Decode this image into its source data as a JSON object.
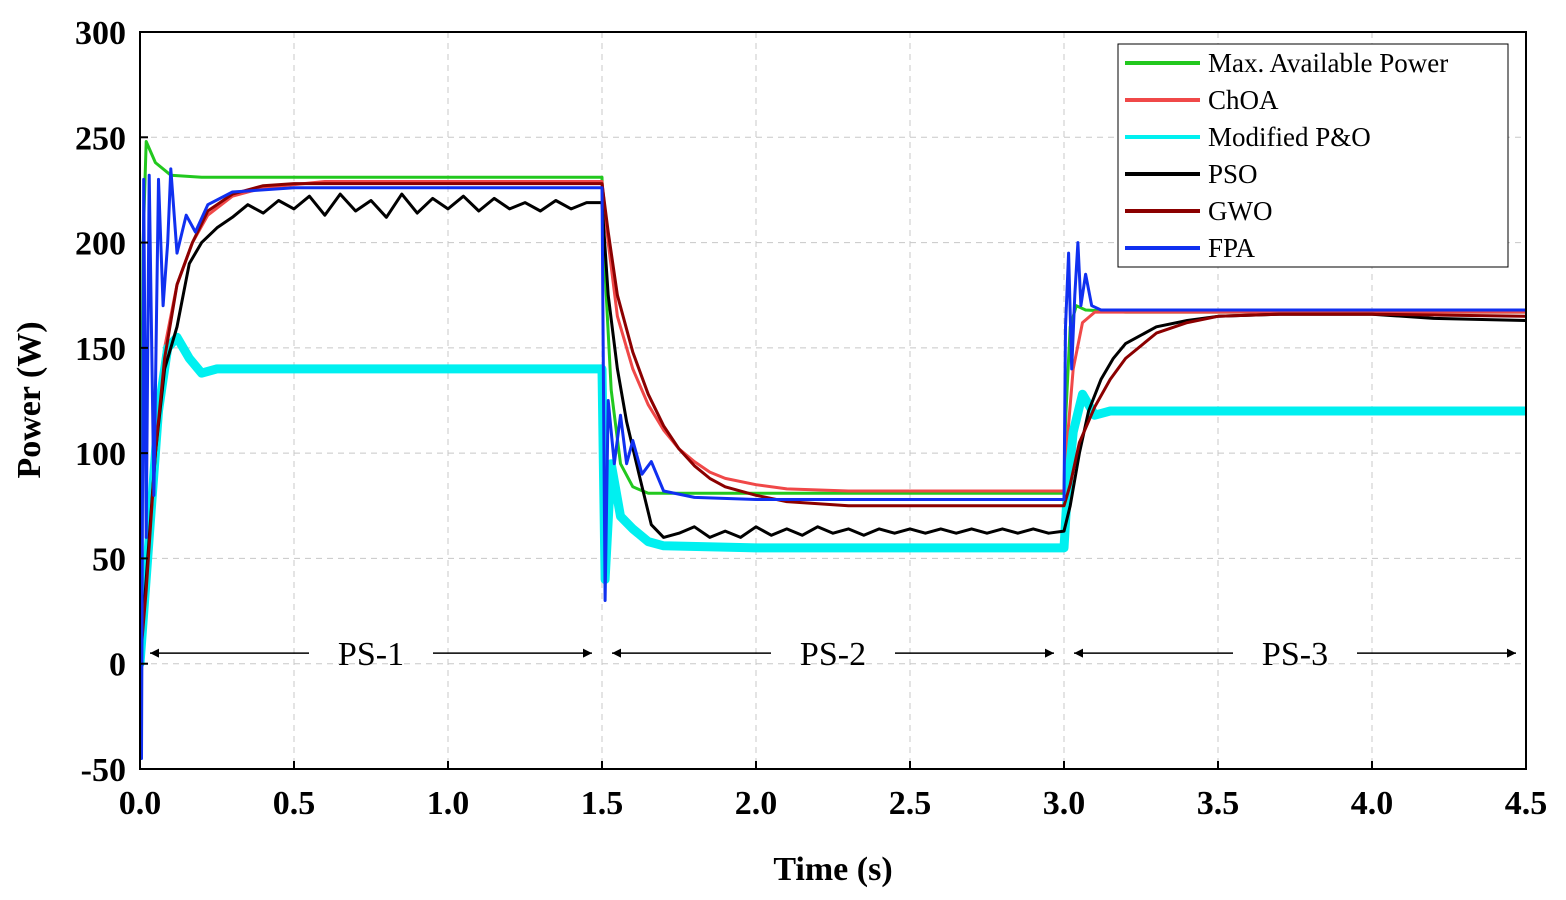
{
  "chart_data": {
    "type": "line",
    "xlabel": "Time (s)",
    "ylabel": "Power (W)",
    "xlim": [
      0,
      4.5
    ],
    "ylim": [
      -50,
      300
    ],
    "grid": true,
    "legend_position": "top-right",
    "x_ticks": [
      "0.0",
      "0.5",
      "1.0",
      "1.5",
      "2.0",
      "2.5",
      "3.0",
      "3.5",
      "4.0",
      "4.5"
    ],
    "y_ticks": [
      "-50",
      "0",
      "50",
      "100",
      "150",
      "200",
      "250",
      "300"
    ],
    "x_tick_values": [
      0,
      0.5,
      1.0,
      1.5,
      2.0,
      2.5,
      3.0,
      3.5,
      4.0,
      4.5
    ],
    "y_tick_values": [
      -50,
      0,
      50,
      100,
      150,
      200,
      250,
      300
    ],
    "series": [
      {
        "name": "Max. Available Power",
        "color": "#22c81e",
        "points": [
          [
            0,
            0
          ],
          [
            0.01,
            200
          ],
          [
            0.02,
            248
          ],
          [
            0.05,
            238
          ],
          [
            0.1,
            232
          ],
          [
            0.2,
            231
          ],
          [
            0.5,
            231
          ],
          [
            1.0,
            231
          ],
          [
            1.5,
            231
          ],
          [
            1.505,
            200
          ],
          [
            1.53,
            130
          ],
          [
            1.56,
            95
          ],
          [
            1.6,
            84
          ],
          [
            1.65,
            81
          ],
          [
            1.8,
            81
          ],
          [
            2.0,
            81
          ],
          [
            2.5,
            81
          ],
          [
            3.0,
            81
          ],
          [
            3.005,
            115
          ],
          [
            3.02,
            160
          ],
          [
            3.04,
            170
          ],
          [
            3.07,
            168
          ],
          [
            3.2,
            167
          ],
          [
            4.0,
            167
          ],
          [
            4.5,
            167
          ]
        ]
      },
      {
        "name": "ChOA",
        "color": "#f04848",
        "points": [
          [
            0,
            0
          ],
          [
            0.02,
            40
          ],
          [
            0.05,
            110
          ],
          [
            0.08,
            150
          ],
          [
            0.12,
            180
          ],
          [
            0.17,
            200
          ],
          [
            0.22,
            213
          ],
          [
            0.3,
            222
          ],
          [
            0.4,
            226
          ],
          [
            0.6,
            229
          ],
          [
            1.0,
            229
          ],
          [
            1.5,
            229
          ],
          [
            1.52,
            200
          ],
          [
            1.55,
            165
          ],
          [
            1.6,
            140
          ],
          [
            1.65,
            123
          ],
          [
            1.7,
            111
          ],
          [
            1.75,
            102
          ],
          [
            1.8,
            96
          ],
          [
            1.85,
            91
          ],
          [
            1.9,
            88
          ],
          [
            2.0,
            85
          ],
          [
            2.1,
            83
          ],
          [
            2.3,
            82
          ],
          [
            3.0,
            82
          ],
          [
            3.01,
            105
          ],
          [
            3.03,
            140
          ],
          [
            3.06,
            162
          ],
          [
            3.1,
            167
          ],
          [
            3.2,
            167
          ],
          [
            4.0,
            167
          ],
          [
            4.5,
            167
          ]
        ]
      },
      {
        "name": "Modified P&O",
        "color": "#00f0f0",
        "points": [
          [
            0,
            0
          ],
          [
            0.03,
            60
          ],
          [
            0.06,
            120
          ],
          [
            0.09,
            150
          ],
          [
            0.12,
            155
          ],
          [
            0.16,
            145
          ],
          [
            0.2,
            138
          ],
          [
            0.25,
            140
          ],
          [
            0.4,
            140
          ],
          [
            1.0,
            140
          ],
          [
            1.5,
            140
          ],
          [
            1.505,
            90
          ],
          [
            1.51,
            40
          ],
          [
            1.53,
            95
          ],
          [
            1.56,
            70
          ],
          [
            1.6,
            64
          ],
          [
            1.65,
            58
          ],
          [
            1.7,
            56
          ],
          [
            2.0,
            55
          ],
          [
            3.0,
            55
          ],
          [
            3.01,
            80
          ],
          [
            3.03,
            110
          ],
          [
            3.06,
            128
          ],
          [
            3.1,
            118
          ],
          [
            3.15,
            120
          ],
          [
            4.0,
            120
          ],
          [
            4.5,
            120
          ]
        ]
      },
      {
        "name": "PSO",
        "color": "#000000",
        "points": [
          [
            0,
            0
          ],
          [
            0.02,
            40
          ],
          [
            0.05,
            100
          ],
          [
            0.08,
            140
          ],
          [
            0.12,
            160
          ],
          [
            0.16,
            190
          ],
          [
            0.2,
            200
          ],
          [
            0.25,
            207
          ],
          [
            0.3,
            212
          ],
          [
            0.35,
            218
          ],
          [
            0.4,
            214
          ],
          [
            0.45,
            220
          ],
          [
            0.5,
            216
          ],
          [
            0.55,
            222
          ],
          [
            0.6,
            213
          ],
          [
            0.65,
            223
          ],
          [
            0.7,
            215
          ],
          [
            0.75,
            220
          ],
          [
            0.8,
            212
          ],
          [
            0.85,
            223
          ],
          [
            0.9,
            214
          ],
          [
            0.95,
            221
          ],
          [
            1.0,
            216
          ],
          [
            1.05,
            222
          ],
          [
            1.1,
            215
          ],
          [
            1.15,
            221
          ],
          [
            1.2,
            216
          ],
          [
            1.25,
            219
          ],
          [
            1.3,
            215
          ],
          [
            1.35,
            220
          ],
          [
            1.4,
            216
          ],
          [
            1.45,
            219
          ],
          [
            1.5,
            219
          ],
          [
            1.52,
            175
          ],
          [
            1.55,
            140
          ],
          [
            1.58,
            115
          ],
          [
            1.62,
            90
          ],
          [
            1.66,
            66
          ],
          [
            1.7,
            60
          ],
          [
            1.75,
            62
          ],
          [
            1.8,
            65
          ],
          [
            1.85,
            60
          ],
          [
            1.9,
            63
          ],
          [
            1.95,
            60
          ],
          [
            2.0,
            65
          ],
          [
            2.05,
            61
          ],
          [
            2.1,
            64
          ],
          [
            2.15,
            61
          ],
          [
            2.2,
            65
          ],
          [
            2.25,
            62
          ],
          [
            2.3,
            64
          ],
          [
            2.35,
            61
          ],
          [
            2.4,
            64
          ],
          [
            2.45,
            62
          ],
          [
            2.5,
            64
          ],
          [
            2.55,
            62
          ],
          [
            2.6,
            64
          ],
          [
            2.65,
            62
          ],
          [
            2.7,
            64
          ],
          [
            2.75,
            62
          ],
          [
            2.8,
            64
          ],
          [
            2.85,
            62
          ],
          [
            2.9,
            64
          ],
          [
            2.95,
            62
          ],
          [
            3.0,
            63
          ],
          [
            3.02,
            75
          ],
          [
            3.05,
            100
          ],
          [
            3.08,
            120
          ],
          [
            3.12,
            135
          ],
          [
            3.16,
            145
          ],
          [
            3.2,
            152
          ],
          [
            3.3,
            160
          ],
          [
            3.4,
            163
          ],
          [
            3.5,
            165
          ],
          [
            3.7,
            166
          ],
          [
            4.0,
            166
          ],
          [
            4.2,
            164
          ],
          [
            4.5,
            163
          ]
        ]
      },
      {
        "name": "GWO",
        "color": "#8b0000",
        "points": [
          [
            0,
            0
          ],
          [
            0.02,
            35
          ],
          [
            0.05,
            100
          ],
          [
            0.08,
            145
          ],
          [
            0.12,
            180
          ],
          [
            0.17,
            200
          ],
          [
            0.22,
            215
          ],
          [
            0.3,
            223
          ],
          [
            0.4,
            227
          ],
          [
            0.5,
            228
          ],
          [
            1.0,
            228
          ],
          [
            1.5,
            228
          ],
          [
            1.52,
            205
          ],
          [
            1.55,
            175
          ],
          [
            1.6,
            148
          ],
          [
            1.65,
            128
          ],
          [
            1.7,
            113
          ],
          [
            1.75,
            102
          ],
          [
            1.8,
            94
          ],
          [
            1.85,
            88
          ],
          [
            1.9,
            84
          ],
          [
            2.0,
            80
          ],
          [
            2.1,
            77
          ],
          [
            2.3,
            75
          ],
          [
            3.0,
            75
          ],
          [
            3.02,
            85
          ],
          [
            3.05,
            105
          ],
          [
            3.1,
            122
          ],
          [
            3.15,
            135
          ],
          [
            3.2,
            145
          ],
          [
            3.3,
            157
          ],
          [
            3.4,
            162
          ],
          [
            3.5,
            165
          ],
          [
            3.7,
            166
          ],
          [
            4.0,
            166
          ],
          [
            4.5,
            165
          ]
        ]
      },
      {
        "name": "FPA",
        "color": "#1030f0",
        "points": [
          [
            0,
            0
          ],
          [
            0.005,
            -45
          ],
          [
            0.012,
            230
          ],
          [
            0.02,
            60
          ],
          [
            0.03,
            232
          ],
          [
            0.045,
            80
          ],
          [
            0.06,
            230
          ],
          [
            0.075,
            170
          ],
          [
            0.09,
            200
          ],
          [
            0.1,
            235
          ],
          [
            0.12,
            195
          ],
          [
            0.15,
            213
          ],
          [
            0.18,
            205
          ],
          [
            0.22,
            218
          ],
          [
            0.3,
            224
          ],
          [
            0.5,
            226
          ],
          [
            1.0,
            226
          ],
          [
            1.5,
            226
          ],
          [
            1.505,
            130
          ],
          [
            1.51,
            30
          ],
          [
            1.52,
            125
          ],
          [
            1.54,
            95
          ],
          [
            1.56,
            118
          ],
          [
            1.58,
            95
          ],
          [
            1.6,
            106
          ],
          [
            1.63,
            90
          ],
          [
            1.66,
            96
          ],
          [
            1.7,
            82
          ],
          [
            1.8,
            79
          ],
          [
            2.0,
            78
          ],
          [
            3.0,
            78
          ],
          [
            3.005,
            160
          ],
          [
            3.015,
            195
          ],
          [
            3.025,
            140
          ],
          [
            3.035,
            175
          ],
          [
            3.045,
            200
          ],
          [
            3.055,
            170
          ],
          [
            3.07,
            185
          ],
          [
            3.09,
            170
          ],
          [
            3.12,
            168
          ],
          [
            3.2,
            168
          ],
          [
            4.0,
            168
          ],
          [
            4.5,
            168
          ]
        ]
      }
    ],
    "regions": [
      {
        "label": "PS-1",
        "start": 0.0,
        "end": 1.5,
        "y": 5
      },
      {
        "label": "PS-2",
        "start": 1.5,
        "end": 3.0,
        "y": 5
      },
      {
        "label": "PS-3",
        "start": 3.0,
        "end": 4.5,
        "y": 5
      }
    ]
  }
}
